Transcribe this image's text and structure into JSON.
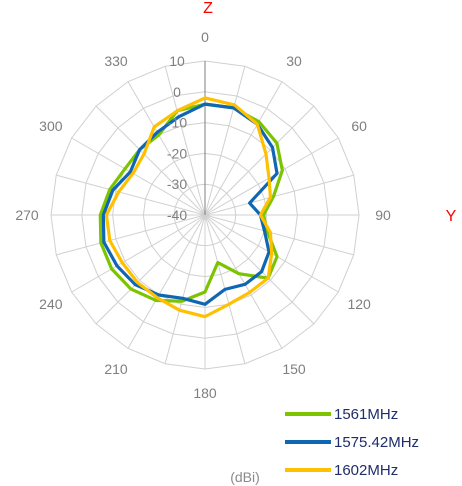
{
  "chart_data": {
    "type": "radar",
    "title": "",
    "unit_label": "(dBi)",
    "axis_labels": {
      "top": "Z",
      "right": "Y"
    },
    "angle_ticks": [
      "0",
      "30",
      "60",
      "90",
      "120",
      "150",
      "180",
      "210",
      "240",
      "270",
      "300",
      "330"
    ],
    "radial_ticks": [
      "10",
      "0",
      "-10",
      "-20",
      "-30",
      "-40"
    ],
    "rlim": [
      -40,
      10
    ],
    "angles_deg": [
      0,
      15,
      30,
      45,
      60,
      75,
      90,
      105,
      120,
      135,
      150,
      165,
      180,
      195,
      210,
      225,
      240,
      255,
      270,
      285,
      300,
      315,
      330,
      345
    ],
    "series": [
      {
        "name": "1561MHz",
        "color": "#7cc400",
        "values": [
          -4,
          -4,
          -5,
          -7,
          -11,
          -17,
          -21,
          -19,
          -13,
          -11,
          -18,
          -24,
          -15,
          -11,
          -8,
          -6,
          -5,
          -5,
          -6,
          -8,
          -10,
          -10,
          -10,
          -5
        ]
      },
      {
        "name": "1575.42MHz",
        "color": "#0f67b4",
        "values": [
          -4,
          -4,
          -6,
          -9,
          -13,
          -25,
          -22,
          -20,
          -16,
          -14,
          -14,
          -15,
          -11,
          -12,
          -10,
          -8,
          -7,
          -6,
          -7,
          -9,
          -12,
          -10,
          -9,
          -7
        ]
      },
      {
        "name": "1602MHz",
        "color": "#ffc000",
        "values": [
          -2,
          -3,
          -6,
          -12,
          -16,
          -18,
          -22,
          -18,
          -15,
          -11,
          -11,
          -10,
          -7,
          -8,
          -9,
          -9,
          -9,
          -8,
          -8,
          -11,
          -13,
          -12,
          -7,
          -5
        ]
      }
    ]
  }
}
